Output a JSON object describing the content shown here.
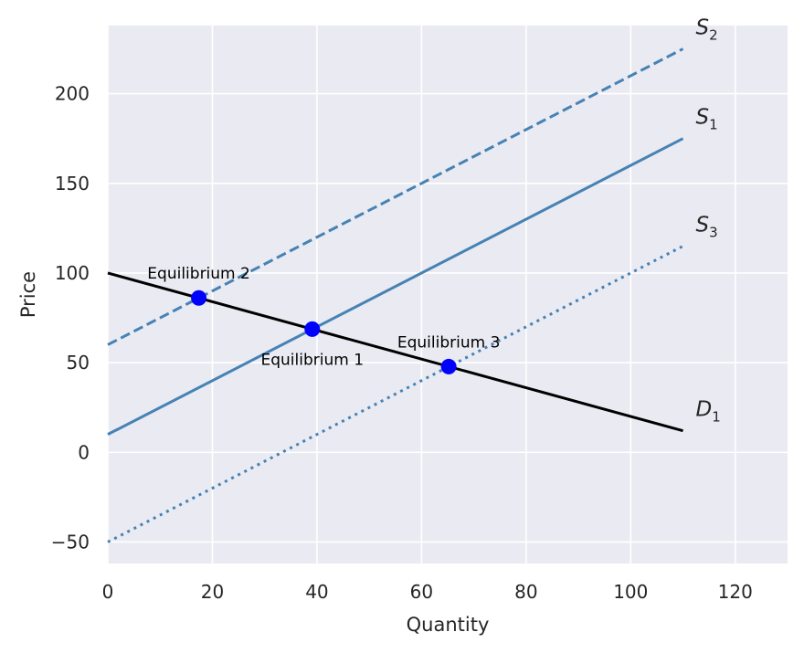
{
  "chart_data": {
    "type": "line",
    "xlabel": "Quantity",
    "ylabel": "Price",
    "xlim": [
      0,
      130
    ],
    "ylim": [
      -62,
      238
    ],
    "xticks": [
      0,
      20,
      40,
      60,
      80,
      100,
      120
    ],
    "yticks": [
      -50,
      0,
      50,
      100,
      150,
      200
    ],
    "grid": true,
    "colors": {
      "background": "#eaeaf2",
      "grid": "#ffffff",
      "supply": "#4682b4",
      "demand": "#000000",
      "equilibrium": "#0000ff"
    },
    "series": [
      {
        "name": "S",
        "sub": "2",
        "style": "dashed",
        "color": "#4682b4",
        "x": [
          0,
          110
        ],
        "y": [
          60,
          225
        ]
      },
      {
        "name": "S",
        "sub": "1",
        "style": "solid",
        "color": "#4682b4",
        "x": [
          0,
          110
        ],
        "y": [
          10,
          175
        ]
      },
      {
        "name": "S",
        "sub": "3",
        "style": "dotted",
        "color": "#4682b4",
        "x": [
          0,
          110
        ],
        "y": [
          -50,
          115
        ]
      },
      {
        "name": "D",
        "sub": "1",
        "style": "solid",
        "color": "#000000",
        "x": [
          0,
          110
        ],
        "y": [
          100,
          12
        ]
      }
    ],
    "points": [
      {
        "label": "Equilibrium 1",
        "x": 39.1,
        "y": 68.7,
        "label_pos": "below"
      },
      {
        "label": "Equilibrium 2",
        "x": 17.4,
        "y": 86.1,
        "label_pos": "above"
      },
      {
        "label": "Equilibrium 3",
        "x": 65.2,
        "y": 47.8,
        "label_pos": "above"
      }
    ]
  }
}
